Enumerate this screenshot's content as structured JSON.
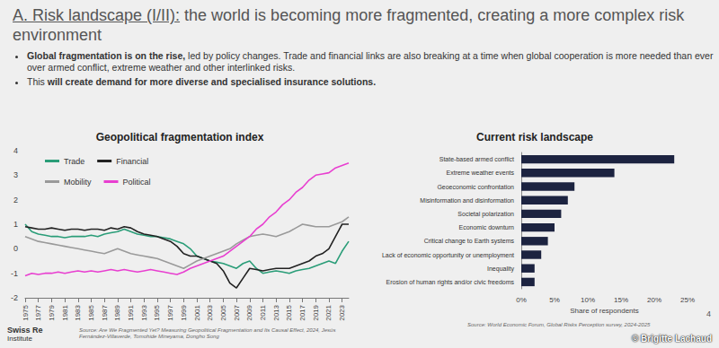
{
  "slide": {
    "title_prefix": "A. Risk landscape (I/II):",
    "title_rest": " the world is becoming more fragmented, creating a more complex risk environment",
    "bullets": [
      [
        {
          "text": "Global fragmentation is on the rise,",
          "bold": true
        },
        {
          "text": " led by policy changes. Trade and financial links are also breaking at a time when global cooperation is more needed than ever over armed conflict, extreme weather and other interlinked risks.",
          "bold": false
        }
      ],
      [
        {
          "text": "This ",
          "bold": false
        },
        {
          "text": "will create demand for more diverse and specialised insurance solutions.",
          "bold": true
        }
      ]
    ],
    "logo": [
      "Swiss Re",
      "Institute"
    ],
    "page_number": 4,
    "watermark": "© Brigitte Lachaud"
  },
  "chart_data": [
    {
      "type": "line",
      "title": "Geopolitical fragmentation index",
      "source": "Source: Are We Fragmented Yet? Measuring Geopolitical Fragmentation and Its Causal Effect, 2024, Jesús Fernández-Villaverde, Tomohide Mineyama, Dongho Song",
      "x": [
        1975,
        1976,
        1977,
        1978,
        1979,
        1980,
        1981,
        1982,
        1983,
        1984,
        1985,
        1986,
        1987,
        1988,
        1989,
        1990,
        1991,
        1992,
        1993,
        1994,
        1995,
        1996,
        1997,
        1998,
        1999,
        2000,
        2001,
        2002,
        2003,
        2004,
        2005,
        2006,
        2007,
        2008,
        2009,
        2010,
        2011,
        2012,
        2013,
        2014,
        2015,
        2016,
        2017,
        2018,
        2019,
        2020,
        2021,
        2022,
        2023,
        2024
      ],
      "series": [
        {
          "name": "Trade",
          "color": "#2a9d78",
          "values": [
            1.0,
            0.7,
            0.6,
            0.55,
            0.5,
            0.5,
            0.45,
            0.5,
            0.5,
            0.5,
            0.55,
            0.5,
            0.6,
            0.65,
            0.7,
            0.8,
            0.7,
            0.6,
            0.55,
            0.5,
            0.5,
            0.45,
            0.4,
            0.3,
            0.2,
            0.0,
            -0.3,
            -0.4,
            -0.5,
            -0.55,
            -0.6,
            -0.7,
            -0.8,
            -0.6,
            -0.5,
            -0.8,
            -1.0,
            -0.95,
            -0.9,
            -0.95,
            -1.0,
            -0.9,
            -0.85,
            -0.8,
            -0.7,
            -0.6,
            -0.5,
            -0.6,
            -0.1,
            0.3
          ]
        },
        {
          "name": "Financial",
          "color": "#222222",
          "values": [
            0.9,
            0.85,
            0.8,
            0.8,
            0.85,
            0.8,
            0.75,
            0.8,
            0.8,
            0.75,
            0.8,
            0.8,
            0.75,
            0.85,
            0.8,
            0.9,
            0.85,
            0.7,
            0.6,
            0.55,
            0.5,
            0.4,
            0.3,
            0.1,
            -0.2,
            -0.3,
            -0.3,
            -0.4,
            -0.5,
            -0.6,
            -0.9,
            -1.4,
            -1.6,
            -1.2,
            -0.8,
            -0.85,
            -0.9,
            -0.85,
            -0.8,
            -0.8,
            -0.8,
            -0.7,
            -0.6,
            -0.5,
            -0.3,
            -0.2,
            0.0,
            0.5,
            1.0,
            1.0
          ]
        },
        {
          "name": "Mobility",
          "color": "#9a9a9a",
          "values": [
            0.5,
            0.4,
            0.3,
            0.25,
            0.2,
            0.15,
            0.1,
            0.05,
            0.0,
            -0.05,
            -0.1,
            -0.15,
            -0.2,
            -0.1,
            0.0,
            -0.1,
            -0.2,
            -0.25,
            -0.3,
            -0.35,
            -0.4,
            -0.5,
            -0.6,
            -0.7,
            -0.8,
            -0.65,
            -0.5,
            -0.4,
            -0.3,
            -0.2,
            -0.1,
            0.0,
            0.2,
            0.35,
            0.5,
            0.55,
            0.6,
            0.55,
            0.5,
            0.6,
            0.7,
            0.85,
            1.0,
            0.95,
            0.9,
            0.9,
            0.9,
            1.0,
            1.1,
            1.3
          ]
        },
        {
          "name": "Political",
          "color": "#e83fd0",
          "values": [
            -1.1,
            -1.0,
            -1.05,
            -1.0,
            -1.0,
            -0.95,
            -1.0,
            -0.95,
            -0.9,
            -0.95,
            -0.9,
            -0.95,
            -0.9,
            -0.85,
            -0.9,
            -0.85,
            -0.9,
            -0.95,
            -0.9,
            -0.85,
            -0.9,
            -0.95,
            -1.0,
            -1.05,
            -0.95,
            -0.8,
            -0.7,
            -0.6,
            -0.5,
            -0.4,
            -0.3,
            -0.1,
            0.1,
            0.3,
            0.5,
            0.8,
            1.0,
            1.3,
            1.5,
            1.8,
            2.0,
            2.3,
            2.5,
            2.8,
            3.0,
            3.05,
            3.1,
            3.3,
            3.4,
            3.5
          ]
        }
      ],
      "xlim": [
        1975,
        2024
      ],
      "xticks": [
        1975,
        1977,
        1979,
        1981,
        1983,
        1985,
        1987,
        1989,
        1991,
        1993,
        1995,
        1997,
        1999,
        2001,
        2003,
        2005,
        2007,
        2009,
        2011,
        2013,
        2015,
        2017,
        2019,
        2021,
        2023
      ],
      "ylim": [
        -2,
        4
      ],
      "yticks": [
        -2,
        -1,
        0,
        1,
        2,
        3,
        4
      ],
      "grid": false,
      "legend": "upper left"
    },
    {
      "type": "bar",
      "title": "Current risk landscape",
      "source": "Source: World Economic Forum, Global Risks Perception survey, 2024-2025",
      "x_label": "Share of respondents",
      "orientation": "horizontal",
      "categories": [
        "State-based armed conflict",
        "Extreme weather events",
        "Geoeconomic confrontation",
        "Misinformation and disinformation",
        "Societal polarization",
        "Economic downturn",
        "Critical change to Earth systems",
        "Lack of economic opportunity or unemployment",
        "Inequality",
        "Erosion of human rights and/or civic freedoms"
      ],
      "values": [
        23,
        14,
        8,
        7,
        6,
        5,
        4,
        3,
        2,
        2
      ],
      "color": "#1c2340",
      "xlim": [
        0,
        25
      ],
      "xticks": [
        {
          "value": 0,
          "label": "0%"
        },
        {
          "value": 5,
          "label": "5%"
        },
        {
          "value": 10,
          "label": "10%"
        },
        {
          "value": 15,
          "label": "15%"
        },
        {
          "value": 20,
          "label": "20%"
        },
        {
          "value": 25,
          "label": "25%"
        }
      ],
      "grid": false
    }
  ]
}
